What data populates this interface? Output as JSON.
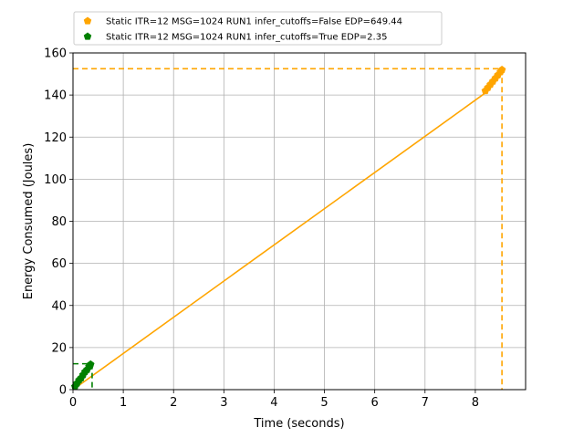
{
  "chart_data": {
    "type": "line",
    "xlabel": "Time (seconds)",
    "ylabel": "Energy Consumed (Joules)",
    "xlim": [
      0,
      9
    ],
    "ylim": [
      0,
      160
    ],
    "xticks": [
      0,
      1,
      2,
      3,
      4,
      5,
      6,
      7,
      8
    ],
    "yticks": [
      0,
      20,
      40,
      60,
      80,
      100,
      120,
      140,
      160
    ],
    "grid": true,
    "legend_position": "top",
    "series": [
      {
        "name": "Static ITR=12 MSG=1024 RUN1 infer_cutoffs=False EDP=649.44",
        "color": "#ffa500",
        "marker": "pentagon",
        "line": {
          "x": [
            0.0,
            8.2
          ],
          "y": [
            0.0,
            141.0
          ]
        },
        "points": {
          "x": [
            8.2,
            8.25,
            8.3,
            8.35,
            8.4,
            8.45,
            8.5,
            8.53
          ],
          "y": [
            142.0,
            143.5,
            145.0,
            146.5,
            148.0,
            149.5,
            151.0,
            152.0
          ]
        },
        "cutoff": {
          "x": 8.53,
          "y": 152.5
        }
      },
      {
        "name": "Static ITR=12 MSG=1024 RUN1 infer_cutoffs=True EDP=2.35",
        "color": "#008000",
        "marker": "pentagon",
        "line": {
          "x": [
            0.0,
            0.34
          ],
          "y": [
            0.0,
            11.5
          ]
        },
        "points": {
          "x": [
            0.04,
            0.08,
            0.12,
            0.16,
            0.2,
            0.24,
            0.28,
            0.32,
            0.35
          ],
          "y": [
            1.5,
            3.0,
            4.5,
            5.5,
            7.0,
            8.5,
            9.5,
            11.0,
            12.0
          ]
        },
        "cutoff": {
          "x": 0.38,
          "y": 12.3
        }
      }
    ]
  }
}
